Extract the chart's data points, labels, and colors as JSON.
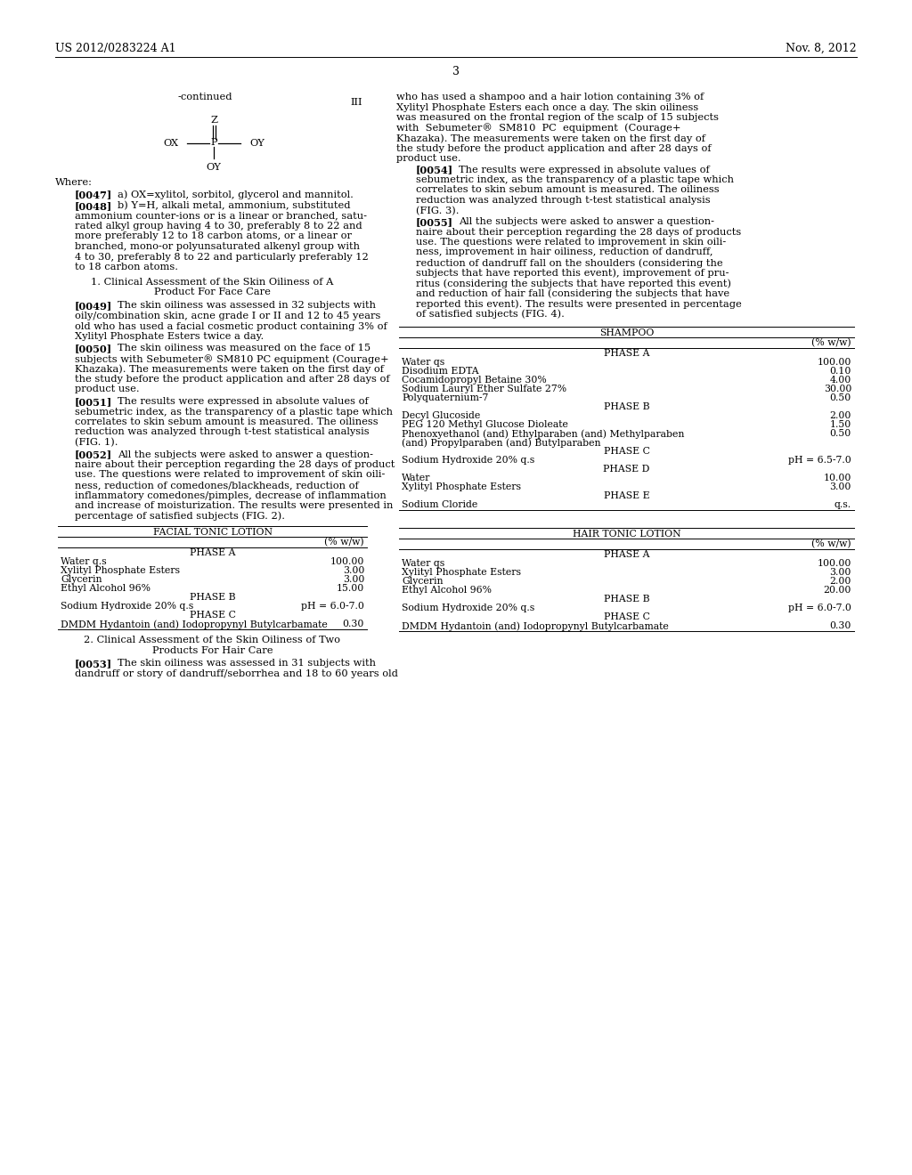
{
  "bg_color": "#ffffff",
  "header_left": "US 2012/0283224 A1",
  "header_right": "Nov. 8, 2012",
  "page_number": "3",
  "continued_label": "-continued",
  "formula_label": "III",
  "table1_title": "FACIAL TONIC LOTION",
  "table1_header": "(% w/w)",
  "table1_sections": [
    {
      "phase": "PHASE A",
      "rows": [
        {
          "name": "Water q.s",
          "value": "100.00"
        },
        {
          "name": "Xylityl Phosphate Esters",
          "value": "3.00"
        },
        {
          "name": "Glycerin",
          "value": "3.00"
        },
        {
          "name": "Ethyl Alcohol 96%",
          "value": "15.00"
        }
      ]
    },
    {
      "phase": "PHASE B",
      "rows": [
        {
          "name": "Sodium Hydroxide 20% q.s",
          "value": "pH = 6.0-7.0"
        }
      ]
    },
    {
      "phase": "PHASE C",
      "rows": [
        {
          "name": "DMDM Hydantoin (and) Iodopropynyl Butylcarbamate",
          "value": "0.30"
        }
      ]
    }
  ],
  "table2_title": "SHAMPOO",
  "table2_header": "(% w/w)",
  "table2_sections": [
    {
      "phase": "PHASE A",
      "rows": [
        {
          "name": "Water qs",
          "value": "100.00"
        },
        {
          "name": "Disodium EDTA",
          "value": "0.10"
        },
        {
          "name": "Cocamidopropyl Betaine 30%",
          "value": "4.00"
        },
        {
          "name": "Sodium Lauryl Ether Sulfate 27%",
          "value": "30.00"
        },
        {
          "name": "Polyquaternium-7",
          "value": "0.50"
        }
      ]
    },
    {
      "phase": "PHASE B",
      "rows": [
        {
          "name": "Decyl Glucoside",
          "value": "2.00"
        },
        {
          "name": "PEG 120 Methyl Glucose Dioleate",
          "value": "1.50"
        },
        {
          "name": "Phenoxyethanol (and) Ethylparaben (and) Methylparaben",
          "value": "0.50"
        },
        {
          "name": "(and) Propylparaben (and) Butylparaben",
          "value": ""
        }
      ]
    },
    {
      "phase": "PHASE C",
      "rows": [
        {
          "name": "Sodium Hydroxide 20% q.s",
          "value": "pH = 6.5-7.0"
        }
      ]
    },
    {
      "phase": "PHASE D",
      "rows": [
        {
          "name": "Water",
          "value": "10.00"
        },
        {
          "name": "Xylityl Phosphate Esters",
          "value": "3.00"
        }
      ]
    },
    {
      "phase": "PHASE E",
      "rows": [
        {
          "name": "Sodium Cloride",
          "value": "q.s."
        }
      ]
    }
  ],
  "table3_title": "HAIR TONIC LOTION",
  "table3_header": "(% w/w)",
  "table3_sections": [
    {
      "phase": "PHASE A",
      "rows": [
        {
          "name": "Water qs",
          "value": "100.00"
        },
        {
          "name": "Xylityl Phosphate Esters",
          "value": "3.00"
        },
        {
          "name": "Glycerin",
          "value": "2.00"
        },
        {
          "name": "Ethyl Alcohol 96%",
          "value": "20.00"
        }
      ]
    },
    {
      "phase": "PHASE B",
      "rows": [
        {
          "name": "Sodium Hydroxide 20% q.s",
          "value": "pH = 6.0-7.0"
        }
      ]
    },
    {
      "phase": "PHASE C",
      "rows": [
        {
          "name": "DMDM Hydantoin (and) Iodopropynyl Butylcarbamate",
          "value": "0.30"
        }
      ]
    }
  ]
}
